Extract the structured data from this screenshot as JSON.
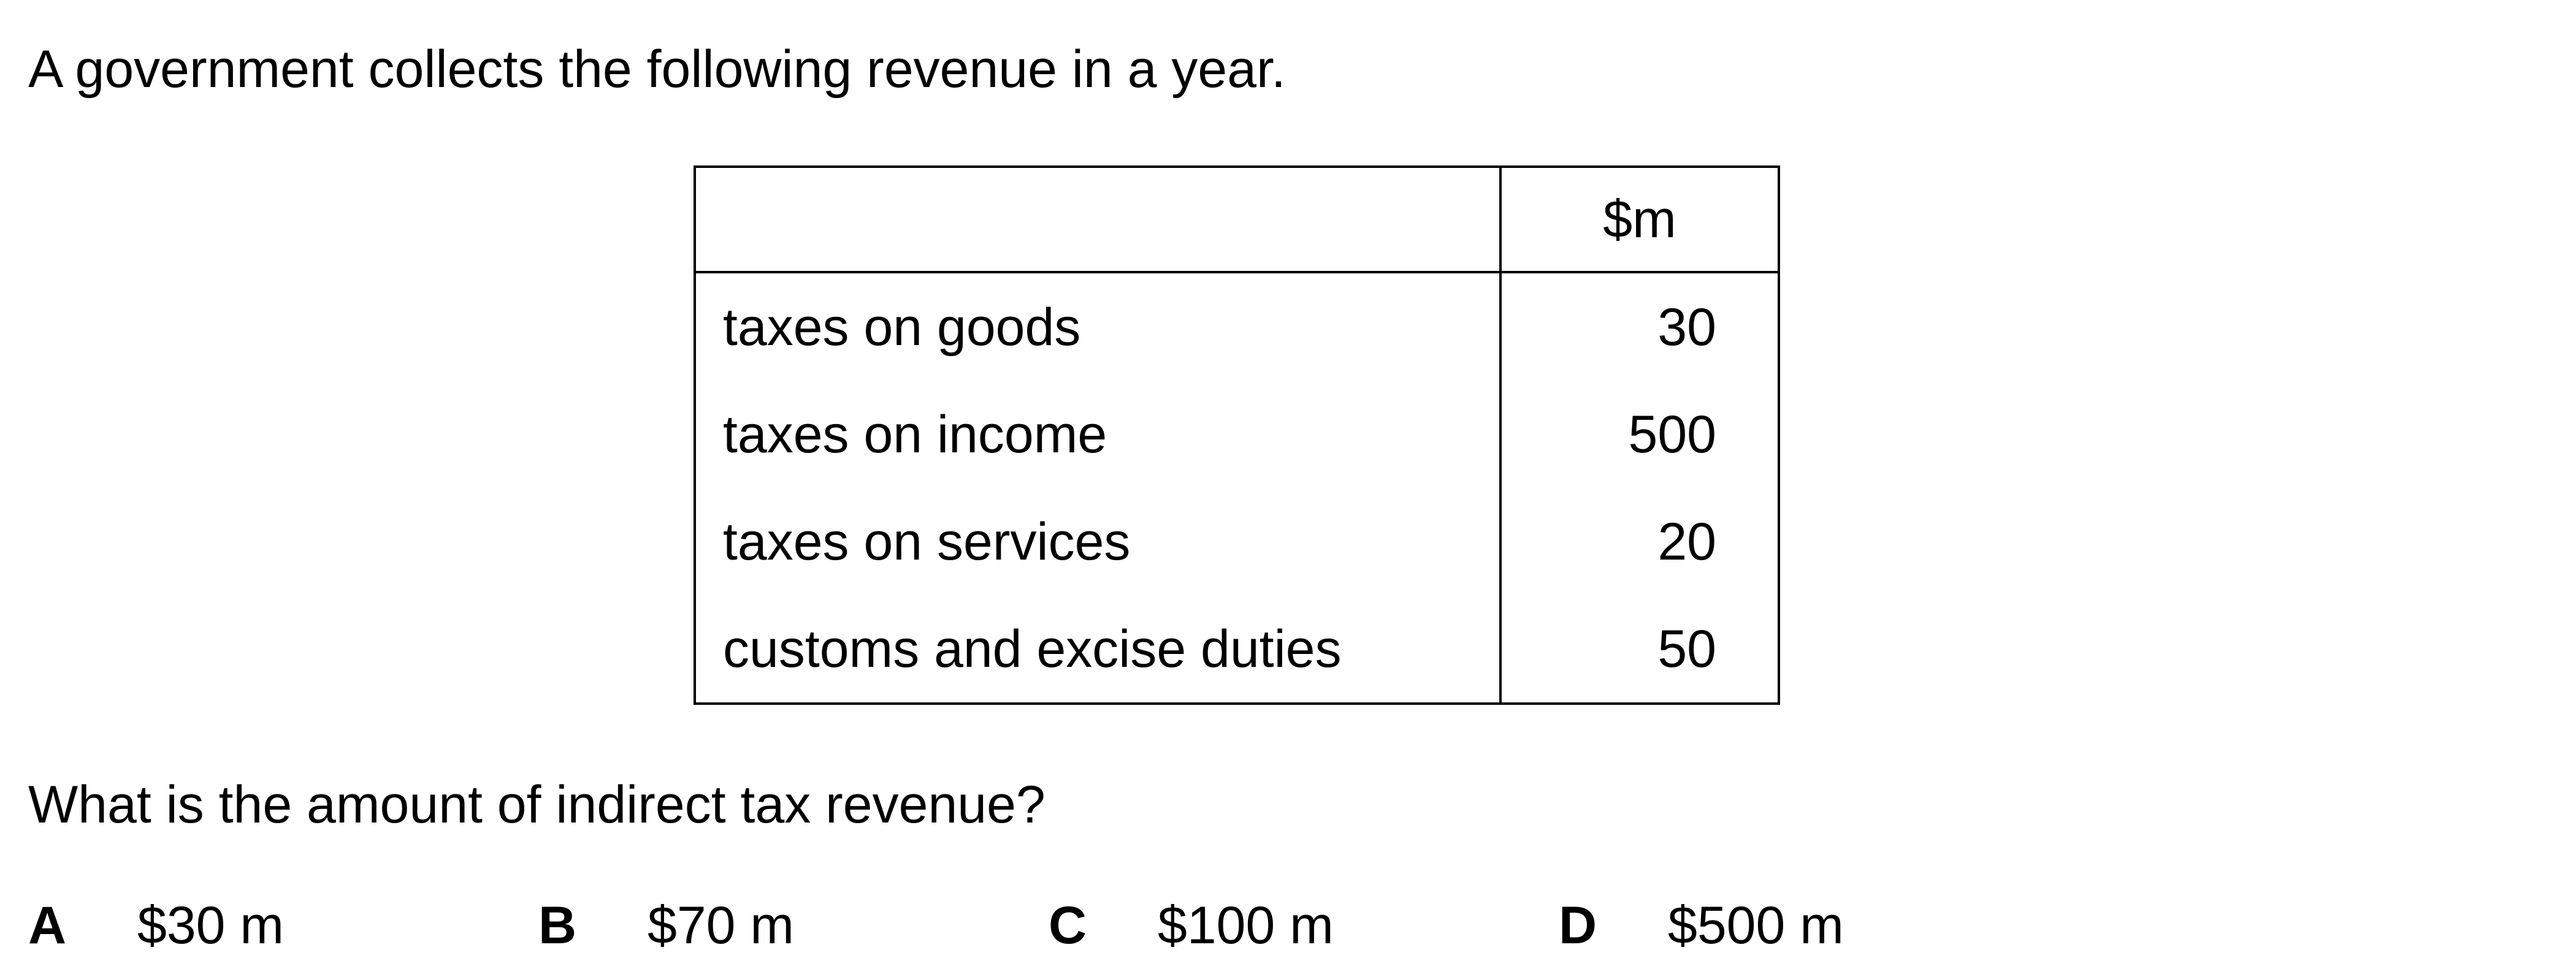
{
  "intro": "A government collects the following revenue in a year.",
  "table": {
    "header": {
      "label": "",
      "unit": "$m"
    },
    "rows": [
      {
        "label": "taxes on goods",
        "value": "30"
      },
      {
        "label": "taxes on income",
        "value": "500"
      },
      {
        "label": "taxes on services",
        "value": "20"
      },
      {
        "label": "customs and excise duties",
        "value": "50"
      }
    ]
  },
  "question": "What is the amount of indirect tax revenue?",
  "options": [
    {
      "letter": "A",
      "value": "$30 m"
    },
    {
      "letter": "B",
      "value": "$70 m"
    },
    {
      "letter": "C",
      "value": "$100 m"
    },
    {
      "letter": "D",
      "value": "$500 m"
    }
  ]
}
